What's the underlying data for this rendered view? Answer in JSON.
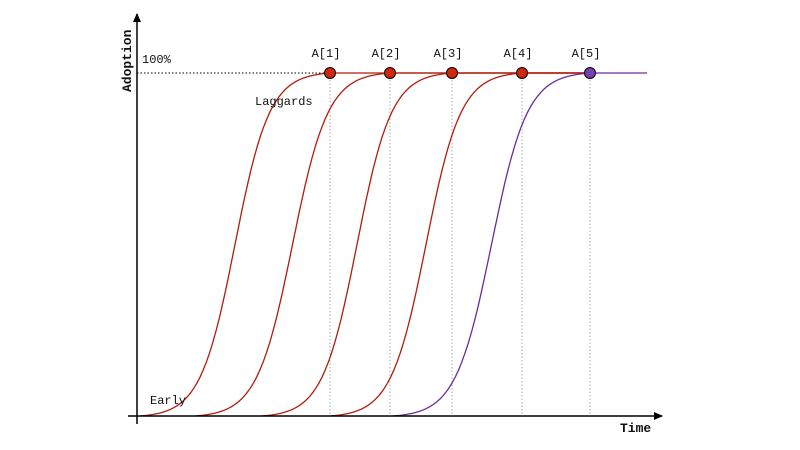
{
  "axes": {
    "y_label": "Adoption",
    "x_label": "Time",
    "full_label": "100%"
  },
  "annotations": {
    "laggards": "Laggards",
    "early": "Early"
  },
  "markers": [
    "A[1]",
    "A[2]",
    "A[3]",
    "A[4]",
    "A[5]"
  ]
}
